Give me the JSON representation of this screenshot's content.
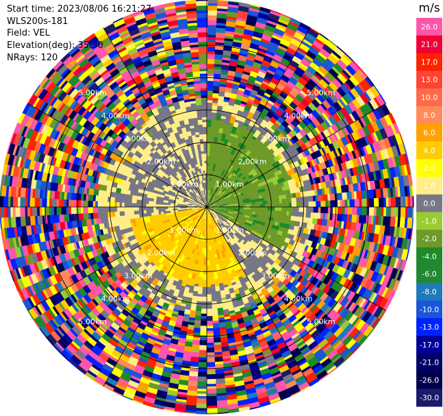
{
  "info": {
    "start_time": "Start time: 2023/08/06 16:21:27",
    "instrument": "WLS200s-181",
    "field": "Field: VEL",
    "elevation": "Elevation(deg): 35.30",
    "nrays": "NRays: 120"
  },
  "chart_data": {
    "type": "heatmap",
    "projection": "polar (PPI scan)",
    "field": "VEL",
    "units": "m/s",
    "range_rings_km": [
      1,
      2,
      3,
      4,
      5
    ],
    "range_ring_labels": [
      "1.00km",
      "2.00km",
      "3.00km",
      "4.00km",
      "5.00km"
    ],
    "max_range_km": 6.4,
    "n_rays": 120,
    "spokes_deg": [
      0,
      30,
      60,
      90,
      120,
      150,
      180,
      210,
      240,
      270,
      300,
      330
    ],
    "pattern": {
      "approaching_sector_deg": [
        0,
        120
      ],
      "approaching_value": -3.0,
      "receding_sector_deg": [
        150,
        260
      ],
      "receding_value": 3.0,
      "coherent_max_range_km": 3.3,
      "noise_beyond_km": 3.3
    },
    "colorbar": {
      "unit_label": "m/s",
      "ticks": [
        26.0,
        21.0,
        17.0,
        13.0,
        10.0,
        8.0,
        6.0,
        4.0,
        2.0,
        1.0,
        0.0,
        -1.0,
        -2.0,
        -4.0,
        -6.0,
        -8.0,
        -10.0,
        -13.0,
        -17.0,
        -21.0,
        -26.0,
        -30.0
      ],
      "tick_labels": [
        "26.0",
        "21.0",
        "17.0",
        "13.0",
        "10.0",
        "8.0",
        "6.0",
        "4.0",
        "2.0",
        "1.0",
        "0.0",
        "-1.0",
        "-2.0",
        "-4.0",
        "-6.0",
        "-8.0",
        "-10.0",
        "-13.0",
        "-17.0",
        "-21.0",
        "-26.0",
        "-30.0"
      ],
      "colors": [
        "#ff55aa",
        "#ee0033",
        "#ff2200",
        "#ff4433",
        "#ff6a4a",
        "#ff8a5a",
        "#ffa200",
        "#ffcc00",
        "#ffff00",
        "#ffee88",
        "#777788",
        "#99cc33",
        "#6e9a2a",
        "#1e8a2a",
        "#228833",
        "#1e7ab8",
        "#1a56d6",
        "#0022ff",
        "#000099",
        "#000066",
        "#00004a",
        "#1a1a6a"
      ]
    }
  }
}
